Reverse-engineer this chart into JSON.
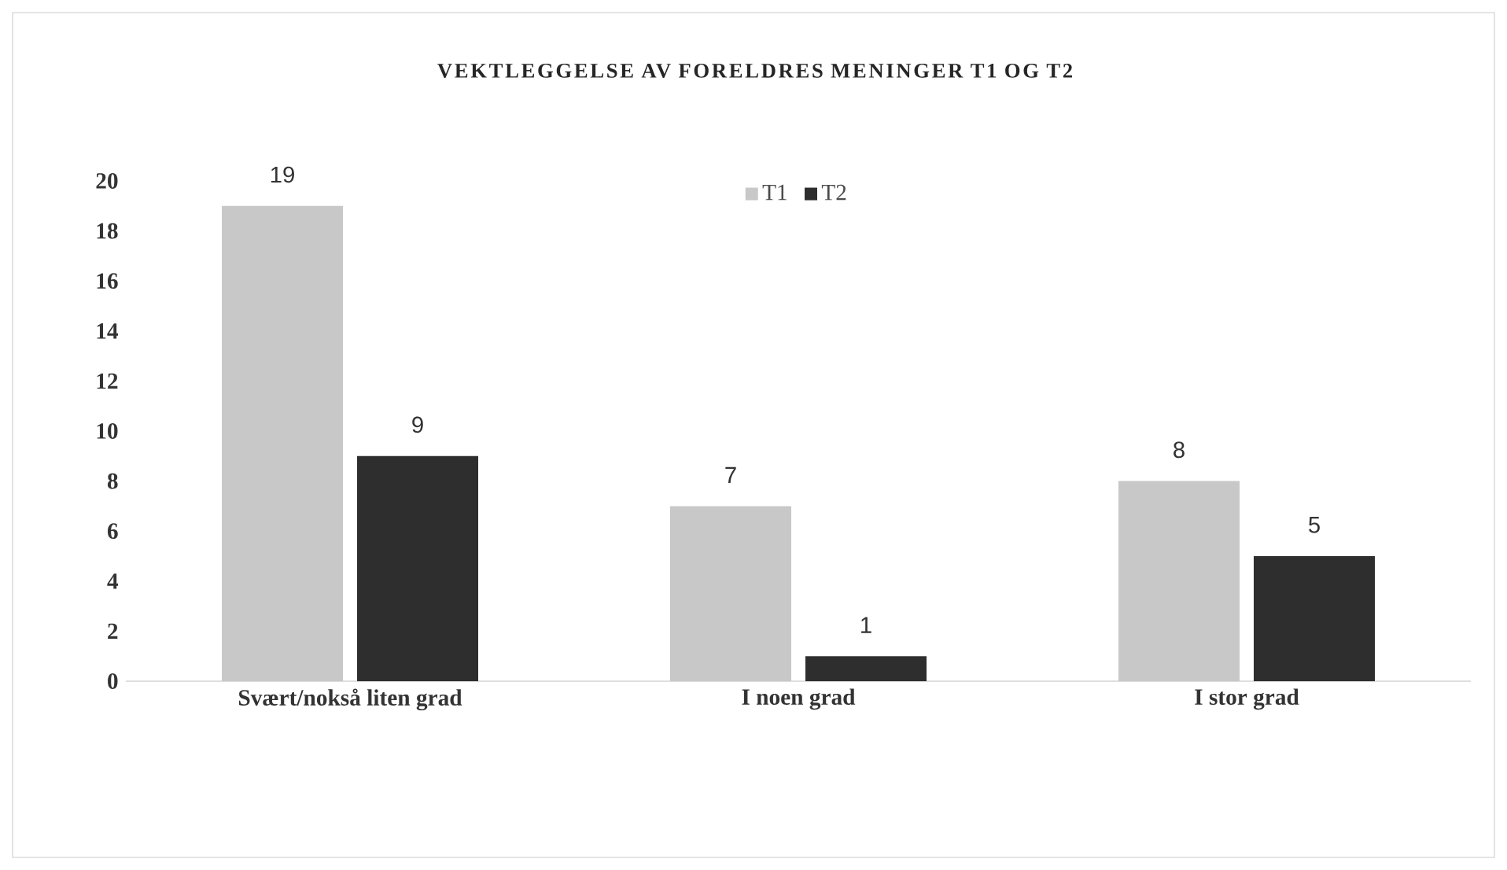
{
  "chart_data": {
    "type": "bar",
    "title": "VEKTLEGGELSE AV FORELDRES MENINGER T1 OG T2",
    "categories": [
      "Svært/nokså liten grad",
      "I noen grad",
      "I stor grad"
    ],
    "series": [
      {
        "name": "T1",
        "color": "#c8c8c8",
        "values": [
          19,
          7,
          8
        ]
      },
      {
        "name": "T2",
        "color": "#2e2e2e",
        "values": [
          9,
          1,
          5
        ]
      }
    ],
    "ylim": [
      0,
      20
    ],
    "yticks": [
      0,
      2,
      4,
      6,
      8,
      10,
      12,
      14,
      16,
      18,
      20
    ],
    "data_labels": true,
    "legend": "top",
    "grid": false
  }
}
